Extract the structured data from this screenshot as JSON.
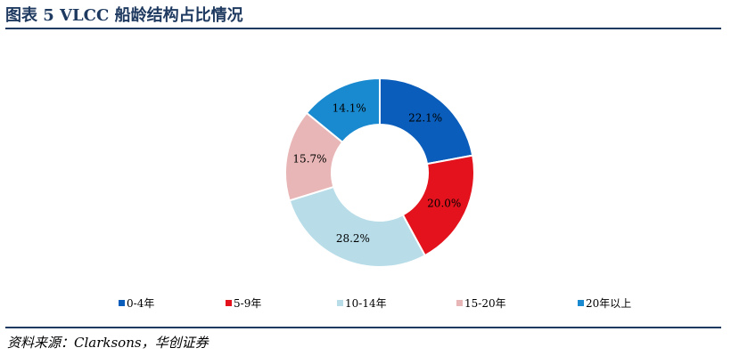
{
  "header": {
    "title": "图表 5  VLCC 船龄结构占比情况"
  },
  "footer": {
    "source": "资料来源：Clarksons，华创证券"
  },
  "colors": {
    "rule": "#1f3a60",
    "title": "#1f3a60"
  },
  "chart_data": {
    "type": "pie",
    "style": "donut",
    "title": "",
    "categories": [
      "0-4年",
      "5-9年",
      "10-14年",
      "15-20年",
      "20年以上"
    ],
    "values": [
      22.1,
      20.0,
      28.2,
      15.7,
      14.1
    ],
    "labels": [
      "22.1%",
      "20.0%",
      "28.2%",
      "15.7%",
      "14.1%"
    ],
    "colors": [
      "#0a5dbb",
      "#e3121c",
      "#b8dde9",
      "#e8b6b6",
      "#1a8ad0"
    ],
    "unit": "%",
    "legend": "bottom",
    "start_angle": "12 o'clock",
    "direction": "clockwise"
  }
}
